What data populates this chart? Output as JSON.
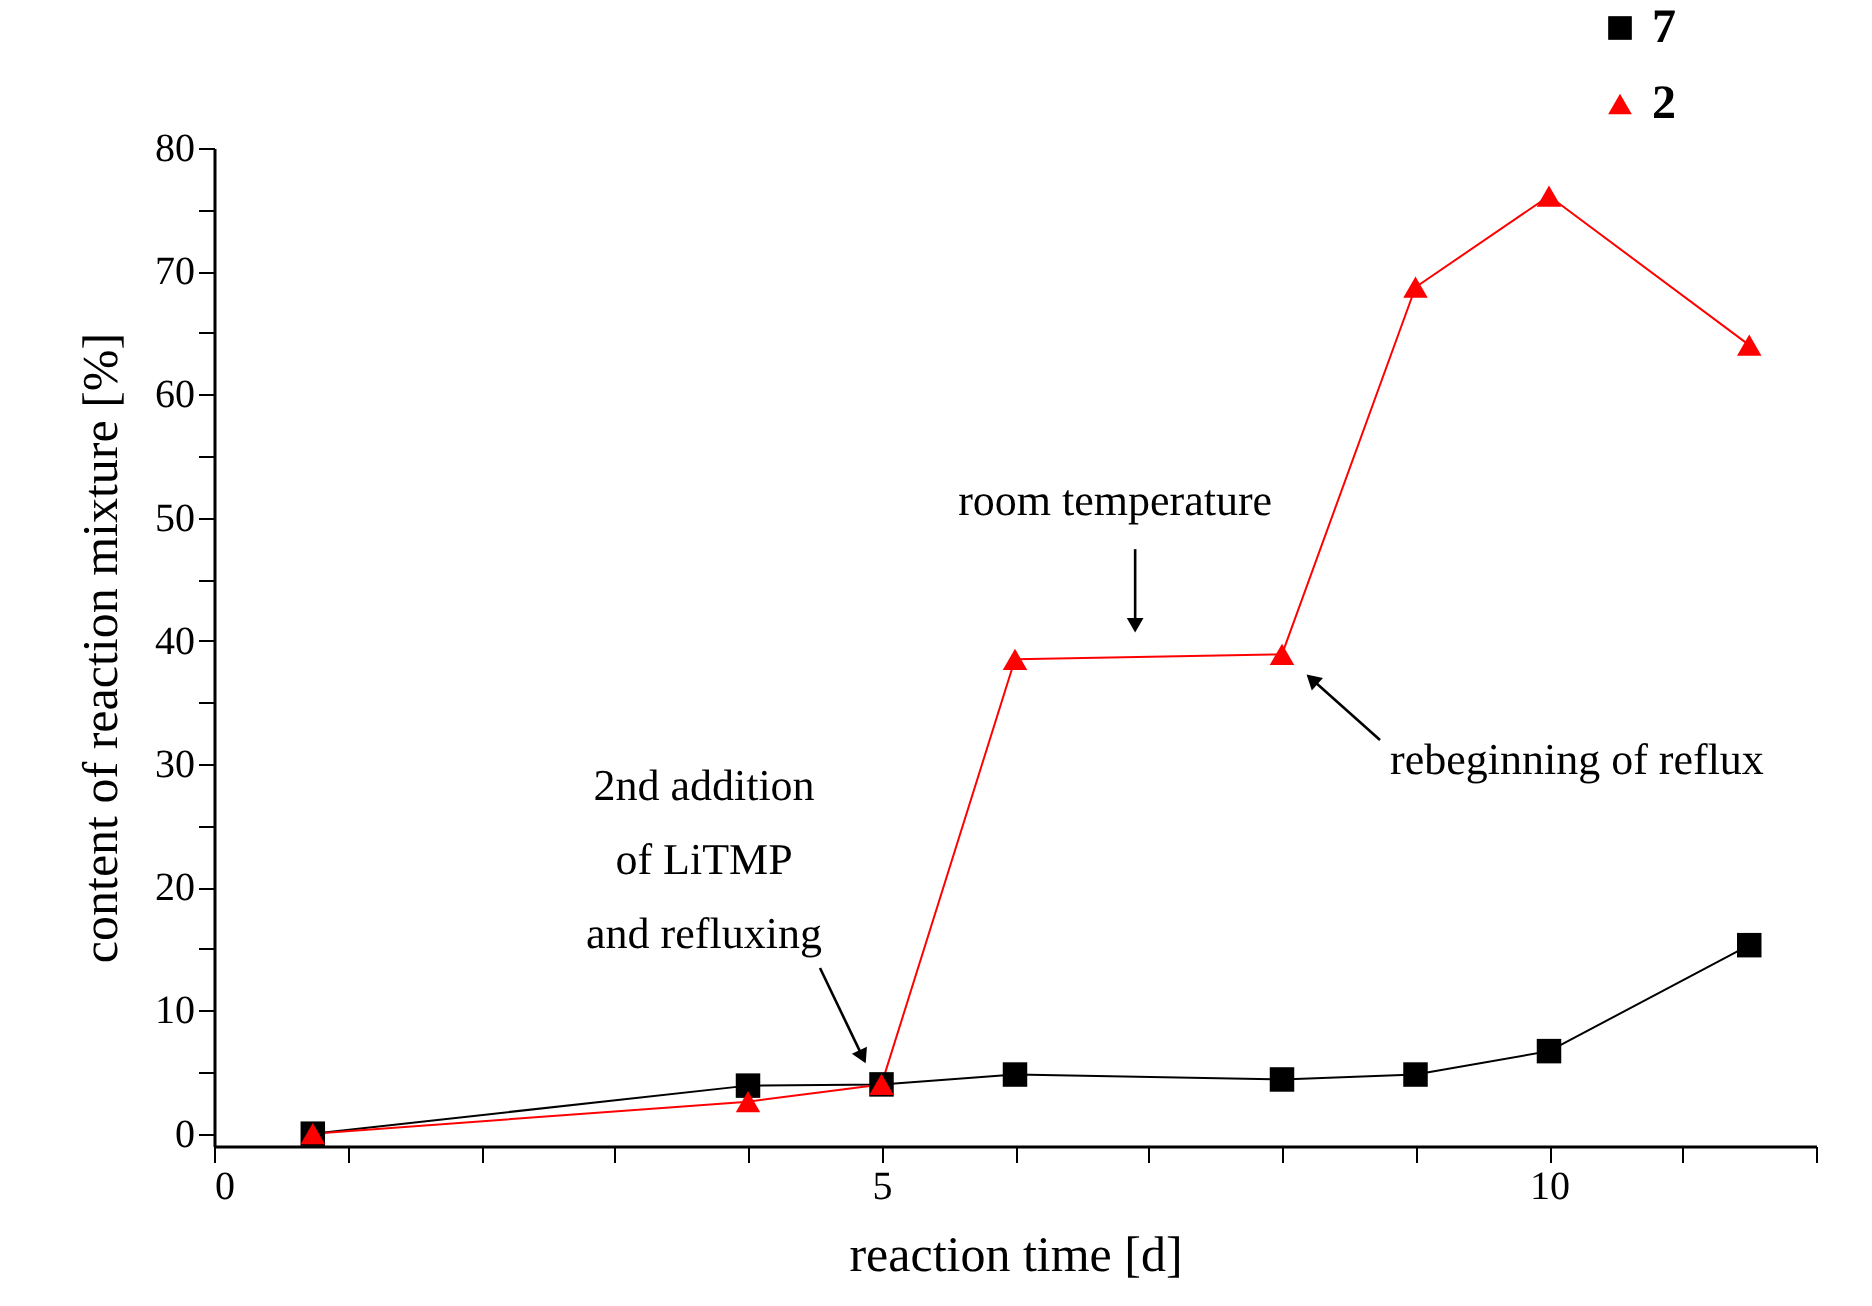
{
  "chart_data": {
    "type": "line",
    "xlabel": "reaction time [d]",
    "ylabel": "content of reaction mixture [%]",
    "x": [
      0.74,
      4,
      5,
      6,
      8,
      9,
      10,
      11.5
    ],
    "series": [
      {
        "name": "7",
        "color": "#000000",
        "marker": "square",
        "values": [
          0,
          3.9,
          4.0,
          4.8,
          4.4,
          4.8,
          6.7,
          15.3
        ]
      },
      {
        "name": "2",
        "color": "#ff0000",
        "marker": "triangle",
        "values": [
          0,
          2.6,
          4.0,
          38.5,
          38.9,
          68.7,
          76.1,
          64.0
        ]
      }
    ],
    "xlim": [
      0,
      12
    ],
    "ylim": [
      -1,
      80
    ],
    "xticks": [
      0,
      {
        "value": 1,
        "label": null
      },
      {
        "value": 2,
        "label": null
      },
      {
        "value": 3,
        "label": null
      },
      {
        "value": 4,
        "label": null
      },
      5,
      {
        "value": 6,
        "label": null
      },
      {
        "value": 7,
        "label": null
      },
      {
        "value": 8,
        "label": null
      },
      {
        "value": 9,
        "label": null
      },
      10,
      {
        "value": 11,
        "label": null
      },
      {
        "value": 12,
        "label": null
      }
    ],
    "yticks": [
      0,
      {
        "value": 5,
        "label": null
      },
      10,
      {
        "value": 15,
        "label": null
      },
      20,
      {
        "value": 25,
        "label": null
      },
      30,
      {
        "value": 35,
        "label": null
      },
      40,
      {
        "value": 45,
        "label": null
      },
      50,
      {
        "value": 55,
        "label": null
      },
      60,
      {
        "value": 65,
        "label": null
      },
      70,
      {
        "value": 75,
        "label": null
      },
      80
    ],
    "annotations": [
      {
        "text": "room temperature",
        "x": 6.9,
        "y": 39
      },
      "rebeginning of reflux",
      "2nd addition\nof LiTMP\nand refluxing"
    ],
    "grid": false,
    "legend": "top right"
  }
}
